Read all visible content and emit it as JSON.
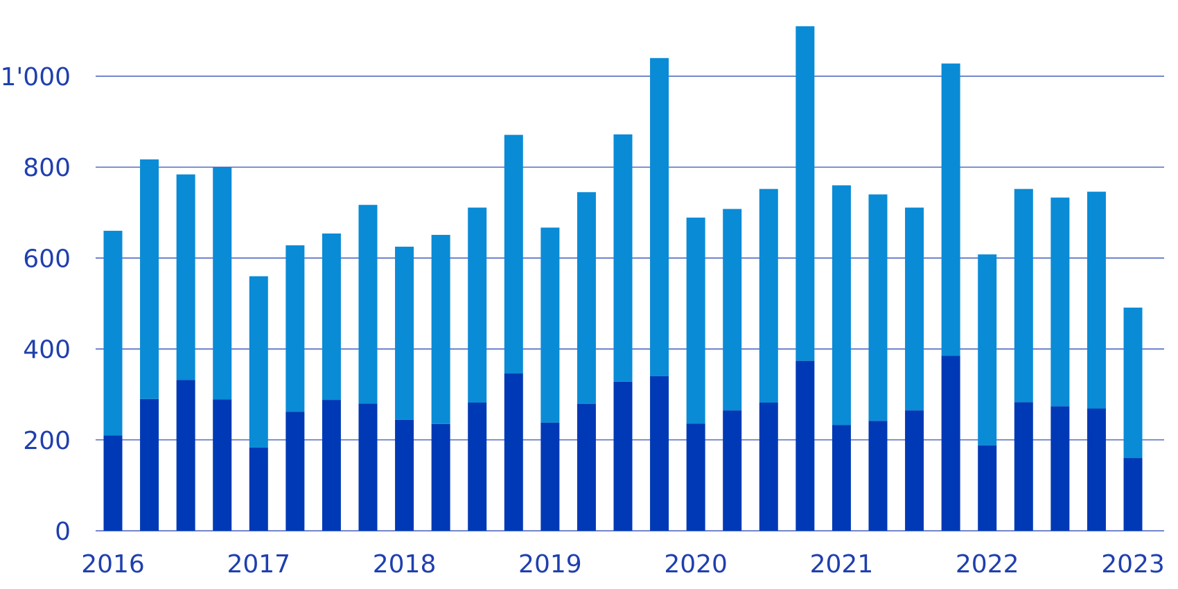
{
  "chart_data": {
    "type": "bar",
    "stacked": true,
    "title": "",
    "xlabel": "",
    "ylabel": "",
    "ylim": [
      0,
      1100
    ],
    "yticks": [
      0,
      200,
      400,
      600,
      800,
      1000
    ],
    "ytick_labels": [
      "0",
      "200",
      "400",
      "600",
      "800",
      "1'000"
    ],
    "grid": true,
    "legend": "none",
    "xtick_labels": [
      "2016",
      "2017",
      "2018",
      "2019",
      "2020",
      "2021",
      "2022",
      "2023"
    ],
    "categories": [
      "2016-Q1",
      "2016-Q2",
      "2016-Q3",
      "2016-Q4",
      "2017-Q1",
      "2017-Q2",
      "2017-Q3",
      "2017-Q4",
      "2018-Q1",
      "2018-Q2",
      "2018-Q3",
      "2018-Q4",
      "2019-Q1",
      "2019-Q2",
      "2019-Q3",
      "2019-Q4",
      "2020-Q1",
      "2020-Q2",
      "2020-Q3",
      "2020-Q4",
      "2021-Q1",
      "2021-Q2",
      "2021-Q3",
      "2021-Q4",
      "2022-Q1",
      "2022-Q2",
      "2022-Q3",
      "2022-Q4",
      "2023-Q1"
    ],
    "series": [
      {
        "color": "#0039b5",
        "values": [
          210,
          290,
          332,
          289,
          183,
          262,
          288,
          280,
          244,
          235,
          282,
          346,
          238,
          279,
          328,
          340,
          236,
          265,
          282,
          374,
          233,
          242,
          265,
          385,
          188,
          283,
          274,
          269,
          160
        ]
      },
      {
        "color": "#0a8bd6",
        "values": [
          450,
          527,
          452,
          511,
          377,
          366,
          366,
          437,
          381,
          416,
          429,
          525,
          429,
          466,
          544,
          700,
          453,
          443,
          470,
          736,
          527,
          498,
          446,
          643,
          420,
          469,
          459,
          477,
          331
        ]
      }
    ],
    "colors": {
      "text": "#1f3fae",
      "grid": "#1f3fae"
    }
  }
}
